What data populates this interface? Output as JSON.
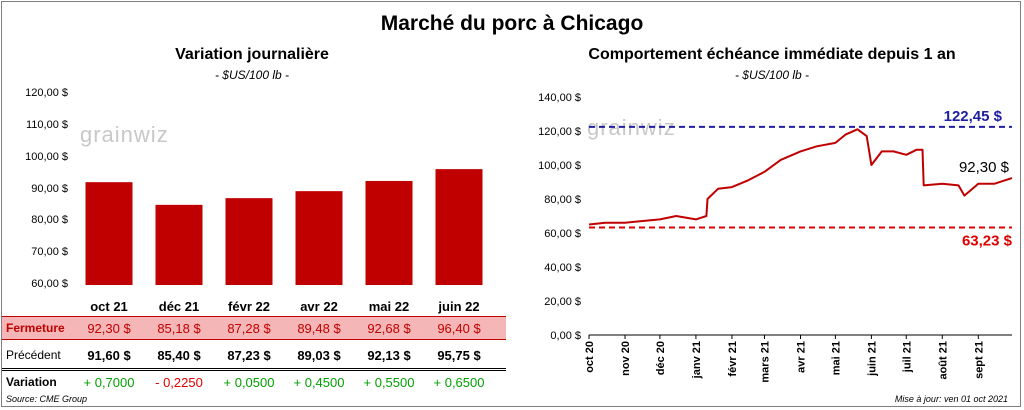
{
  "main_title": "Marché du porc à Chicago",
  "watermark": "grainwiz",
  "left": {
    "title": "Variation  journalière",
    "unit": "- $US/100 lb -",
    "y_ticks": [
      "120,00 $",
      "110,00 $",
      "100,00 $",
      "90,00 $",
      "80,00 $",
      "70,00 $",
      "60,00 $"
    ],
    "colors": {
      "bar": "#c00000",
      "positive": "#00a000",
      "negative": "#e00000"
    }
  },
  "table": {
    "fermeture_label": "Fermeture",
    "precedent_label": "Précédent",
    "variation_label": "Variation",
    "fermeture": [
      "92,30  $",
      "85,18  $",
      "87,28  $",
      "89,48  $",
      "92,68  $",
      "96,40  $"
    ],
    "precedent": [
      "91,60  $",
      "85,40  $",
      "87,23  $",
      "89,03  $",
      "92,13  $",
      "95,75  $"
    ],
    "variation": [
      "+ 0,7000",
      "- 0,2250",
      "+ 0,0500",
      "+ 0,4500",
      "+ 0,5500",
      "+ 0,6500"
    ]
  },
  "right": {
    "title": "Comportement  échéance immédiate depuis 1 an",
    "unit": "- $US/100 lb -",
    "y_ticks": [
      "140,00 $",
      "120,00 $",
      "100,00 $",
      "80,00 $",
      "60,00 $",
      "40,00 $",
      "20,00 $",
      "0,00 $"
    ],
    "x_ticks": [
      "oct 20",
      "nov 20",
      "déc 20",
      "janv 21",
      "févr 21",
      "mars 21",
      "avr 21",
      "mai 21",
      "juin 21",
      "juil 21",
      "août 21",
      "sept 21"
    ],
    "high_label": "122,45 $",
    "low_label": "63,23 $",
    "last_label": "92,30 $",
    "colors": {
      "line": "#c00000",
      "high": "#1f1fa0",
      "low": "#e00000"
    }
  },
  "footer": {
    "source": "Source: CME Group",
    "updated": "Mise à jour: ven 01 oct 2021"
  },
  "chart_data": [
    {
      "type": "bar",
      "title": "Variation  journalière",
      "ylabel": "- $US/100 lb -",
      "categories": [
        "oct 21",
        "déc 21",
        "févr 22",
        "avr 22",
        "mai 22",
        "juin 22"
      ],
      "values": [
        92.3,
        85.18,
        87.28,
        89.48,
        92.68,
        96.4
      ],
      "ylim": [
        60,
        120
      ],
      "grid": false
    },
    {
      "type": "line",
      "title": "Comportement  échéance immédiate depuis 1 an",
      "ylabel": "- $US/100 lb -",
      "ylim": [
        0,
        140
      ],
      "grid": false,
      "reference_lines": [
        {
          "label": "122,45 $",
          "value": 122.45
        },
        {
          "label": "63,23 $",
          "value": 63.23
        }
      ],
      "x": [
        "2020-10-01",
        "2020-10-15",
        "2020-11-01",
        "2020-11-15",
        "2020-12-01",
        "2020-12-15",
        "2021-01-01",
        "2021-01-10",
        "2021-01-11",
        "2021-01-20",
        "2021-02-01",
        "2021-02-15",
        "2021-03-01",
        "2021-03-15",
        "2021-04-01",
        "2021-04-15",
        "2021-05-01",
        "2021-05-10",
        "2021-05-20",
        "2021-05-28",
        "2021-06-01",
        "2021-06-10",
        "2021-06-20",
        "2021-07-01",
        "2021-07-10",
        "2021-07-15",
        "2021-07-16",
        "2021-08-01",
        "2021-08-15",
        "2021-08-20",
        "2021-09-01",
        "2021-09-15",
        "2021-09-30"
      ],
      "y": [
        65,
        66,
        66,
        67,
        68,
        70,
        68,
        70,
        80,
        86,
        87,
        91,
        96,
        103,
        108,
        111,
        113,
        118,
        121,
        117,
        100,
        108,
        108,
        106,
        109,
        109,
        88,
        89,
        88,
        82,
        89,
        89,
        92.3
      ]
    }
  ]
}
